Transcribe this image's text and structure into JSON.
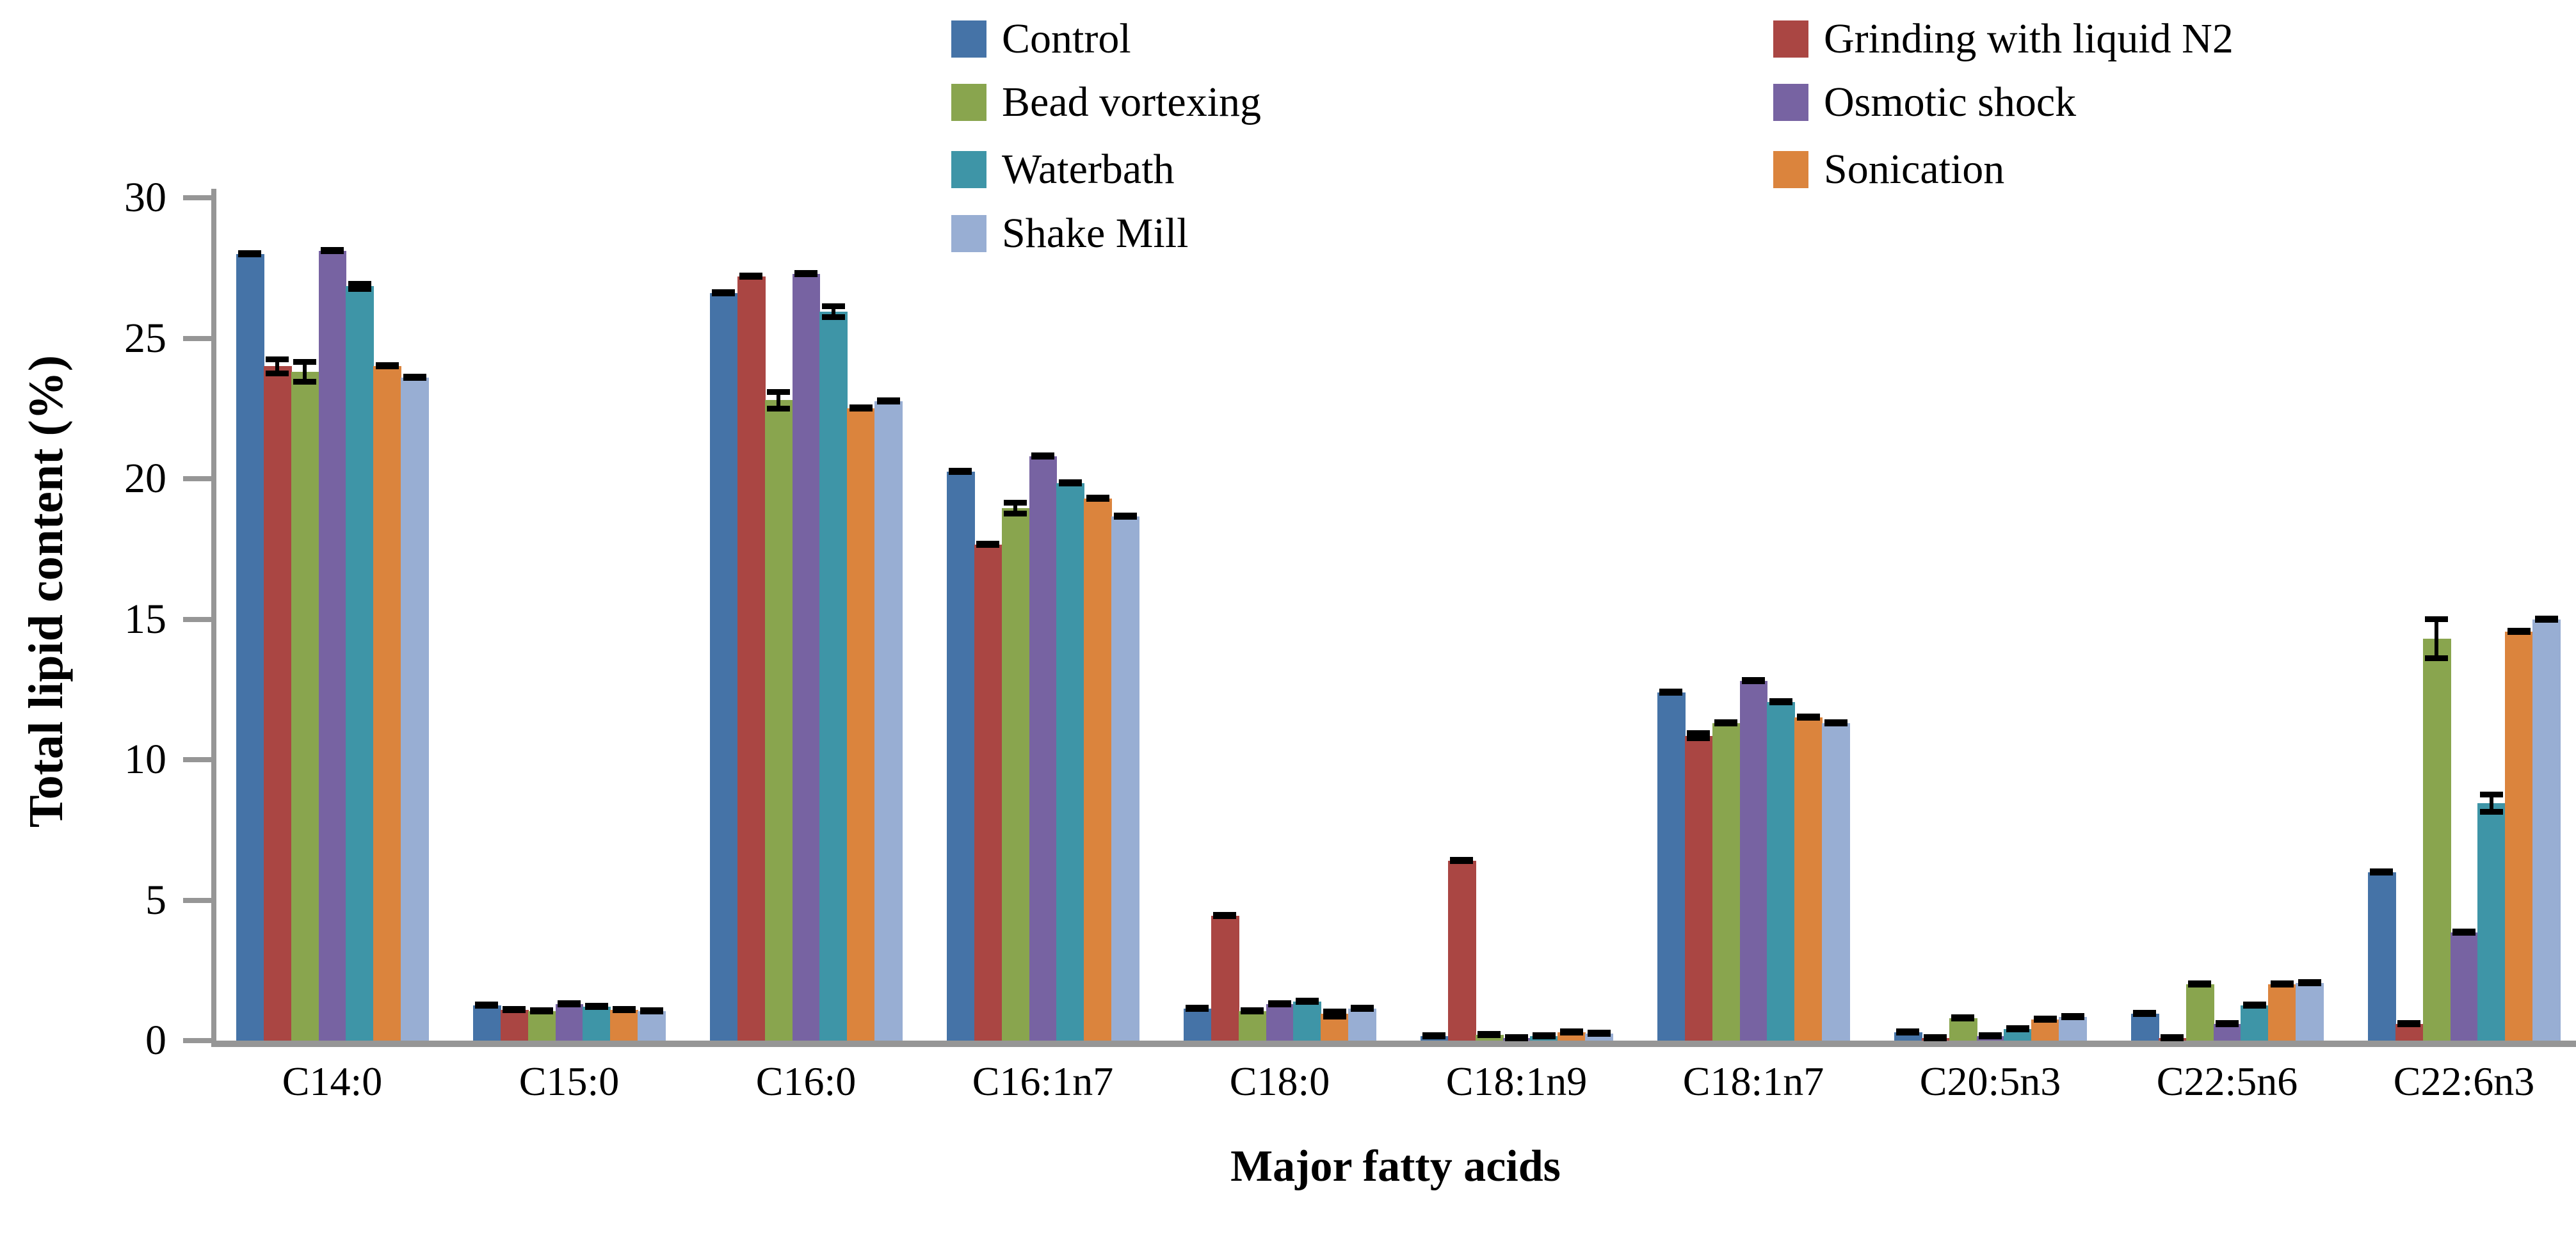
{
  "chart_data": {
    "type": "bar",
    "title": "",
    "xlabel": "Major fatty acids",
    "ylabel": "Total lipid content (%)",
    "ylim": [
      0,
      30
    ],
    "yticks": [
      0,
      5,
      10,
      15,
      20,
      25,
      30
    ],
    "grid": false,
    "legend_position": "top-center, two columns",
    "legend_columns": [
      [
        "Control",
        "Bead vortexing",
        "Waterbath",
        "Shake Mill"
      ],
      [
        "Grinding with liquid N2",
        "Osmotic shock",
        "Sonication"
      ]
    ],
    "categories": [
      "C14:0",
      "C15:0",
      "C16:0",
      "C16:1n7",
      "C18:0",
      "C18:1n9",
      "C18:1n7",
      "C20:5n3",
      "C22:5n6",
      "C22:6n3"
    ],
    "series": [
      {
        "name": "Control",
        "color": "#4573A7",
        "values": [
          28.0,
          1.25,
          26.6,
          20.25,
          1.15,
          0.15,
          12.4,
          0.3,
          0.95,
          6.0
        ],
        "errors": [
          0.15,
          0.1,
          0.15,
          0.15,
          0.1,
          0.05,
          0.15,
          0.08,
          0.1,
          0.12
        ]
      },
      {
        "name": "Grinding with liquid N2",
        "color": "#AA4643",
        "values": [
          24.0,
          1.1,
          27.2,
          17.65,
          4.45,
          6.4,
          10.85,
          0.1,
          0.1,
          0.6
        ],
        "errors": [
          0.35,
          0.08,
          0.12,
          0.1,
          0.12,
          0.1,
          0.2,
          0.03,
          0.03,
          0.1
        ]
      },
      {
        "name": "Bead vortexing",
        "color": "#89A54E",
        "values": [
          23.8,
          1.05,
          22.8,
          18.95,
          1.05,
          0.2,
          11.3,
          0.8,
          2.0,
          14.3
        ],
        "errors": [
          0.45,
          0.08,
          0.4,
          0.3,
          0.1,
          0.06,
          0.12,
          0.1,
          0.15,
          0.8
        ]
      },
      {
        "name": "Osmotic shock",
        "color": "#7763A2",
        "values": [
          28.1,
          1.3,
          27.3,
          20.8,
          1.3,
          0.1,
          12.8,
          0.15,
          0.6,
          3.85
        ],
        "errors": [
          0.12,
          0.1,
          0.1,
          0.12,
          0.1,
          0.04,
          0.12,
          0.05,
          0.08,
          0.12
        ]
      },
      {
        "name": "Waterbath",
        "color": "#3E95A7",
        "values": [
          26.85,
          1.2,
          25.95,
          19.85,
          1.4,
          0.15,
          12.05,
          0.4,
          1.25,
          8.45
        ],
        "errors": [
          0.2,
          0.08,
          0.3,
          0.12,
          0.1,
          0.05,
          0.1,
          0.08,
          0.1,
          0.4
        ]
      },
      {
        "name": "Sonication",
        "color": "#DB843D",
        "values": [
          24.0,
          1.1,
          22.5,
          19.3,
          0.95,
          0.3,
          11.5,
          0.75,
          2.0,
          14.55
        ],
        "errors": [
          0.15,
          0.08,
          0.1,
          0.1,
          0.2,
          0.07,
          0.12,
          0.1,
          0.1,
          0.15
        ]
      },
      {
        "name": "Shake Mill",
        "color": "#98AED3",
        "values": [
          23.6,
          1.05,
          22.75,
          18.65,
          1.15,
          0.25,
          11.3,
          0.85,
          2.05,
          15.0
        ],
        "errors": [
          0.1,
          0.08,
          0.1,
          0.1,
          0.08,
          0.06,
          0.1,
          0.08,
          0.1,
          0.1
        ]
      }
    ]
  },
  "axis_color": "#969696",
  "error_bar_color": "#000000"
}
